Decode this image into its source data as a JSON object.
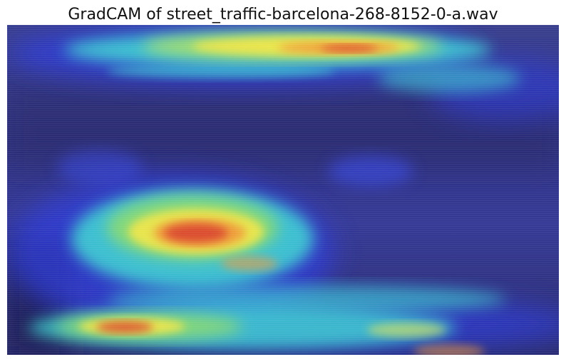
{
  "title": "GradCAM of street_traffic-barcelona-268-8152-0-a.wav",
  "heatmap": {
    "colormap": "jet",
    "colors": {
      "background_dark": "#1c1d52",
      "background_mid": "#2a2f86",
      "low": "#2b37d8",
      "cyan": "#3fd7d3",
      "green": "#8fdc6a",
      "yellow": "#f3e64a",
      "orange": "#f09a3a",
      "red": "#d9432f"
    }
  }
}
